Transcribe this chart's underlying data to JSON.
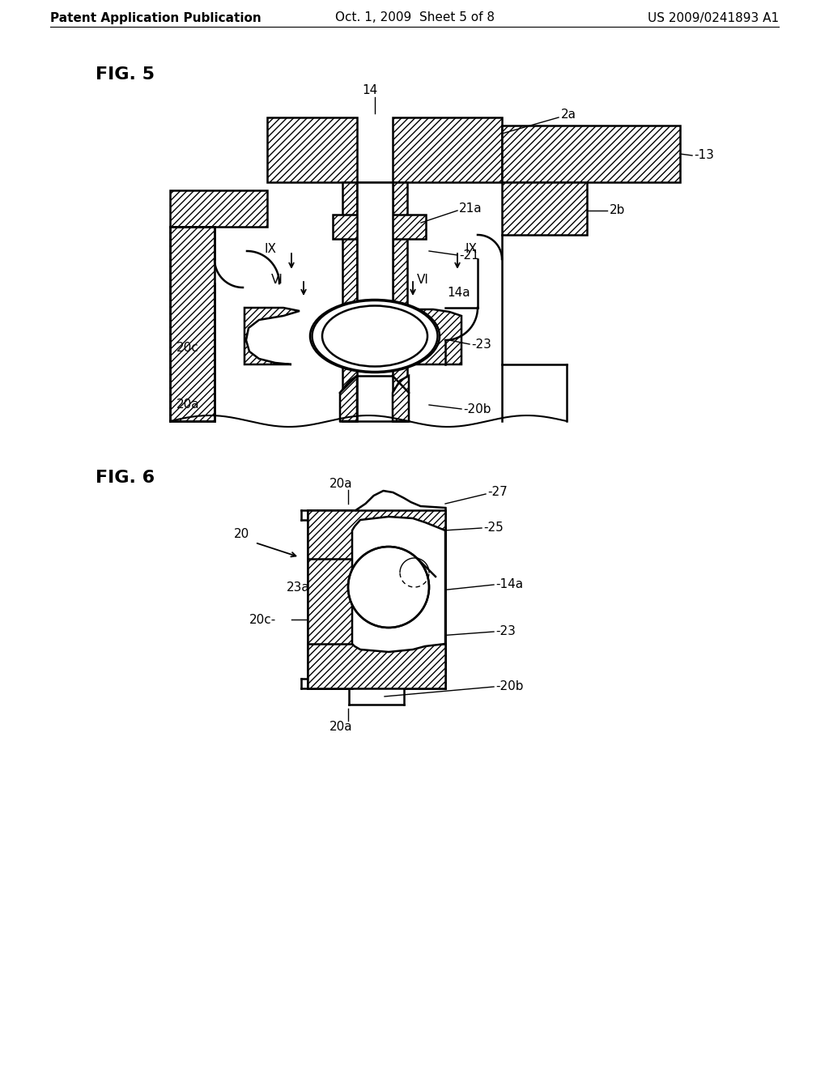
{
  "bg_color": "#ffffff",
  "header_left": "Patent Application Publication",
  "header_mid": "Oct. 1, 2009  Sheet 5 of 8",
  "header_right": "US 2009/0241893 A1",
  "fig5_label": "FIG. 5",
  "fig6_label": "FIG. 6",
  "lw": 1.8,
  "hatch": "////",
  "fs_header": 11,
  "fs_fig": 16,
  "fs_ann": 11
}
